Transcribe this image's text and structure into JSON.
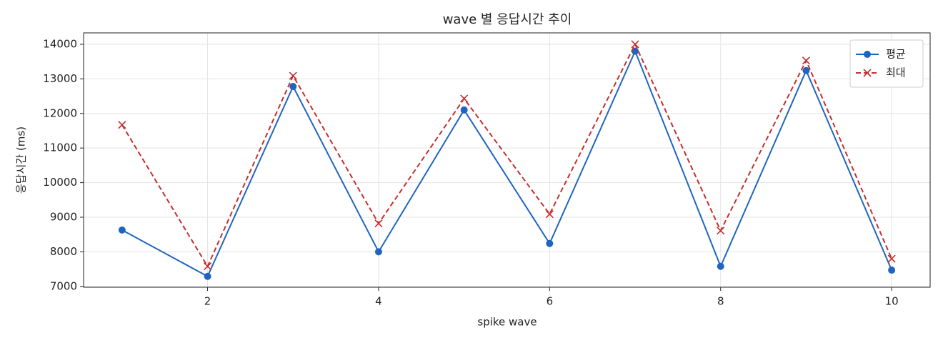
{
  "chart_data": {
    "type": "line",
    "title": "wave 별 응답시간 추이",
    "xlabel": "spike wave",
    "ylabel": "응답시간 (ms)",
    "x": [
      1,
      2,
      3,
      4,
      5,
      6,
      7,
      8,
      9,
      10
    ],
    "series": [
      {
        "name": "평균",
        "color": "#1f65c0",
        "marker": "o",
        "linestyle": "solid",
        "values": [
          8630,
          7290,
          12780,
          8000,
          12100,
          8240,
          13800,
          7580,
          13240,
          7470
        ]
      },
      {
        "name": "최대",
        "color": "#c62f2f",
        "marker": "x",
        "linestyle": "dashed",
        "values": [
          11670,
          7580,
          13090,
          8820,
          12430,
          9090,
          14000,
          8610,
          13530,
          7800
        ]
      }
    ],
    "xlim": [
      0.55,
      10.45
    ],
    "xticks": [
      2,
      4,
      6,
      8,
      10
    ],
    "ylim": [
      6975,
      14330
    ],
    "yticks": [
      7000,
      8000,
      9000,
      10000,
      11000,
      12000,
      13000,
      14000
    ],
    "grid": true,
    "legend": "upper right"
  }
}
